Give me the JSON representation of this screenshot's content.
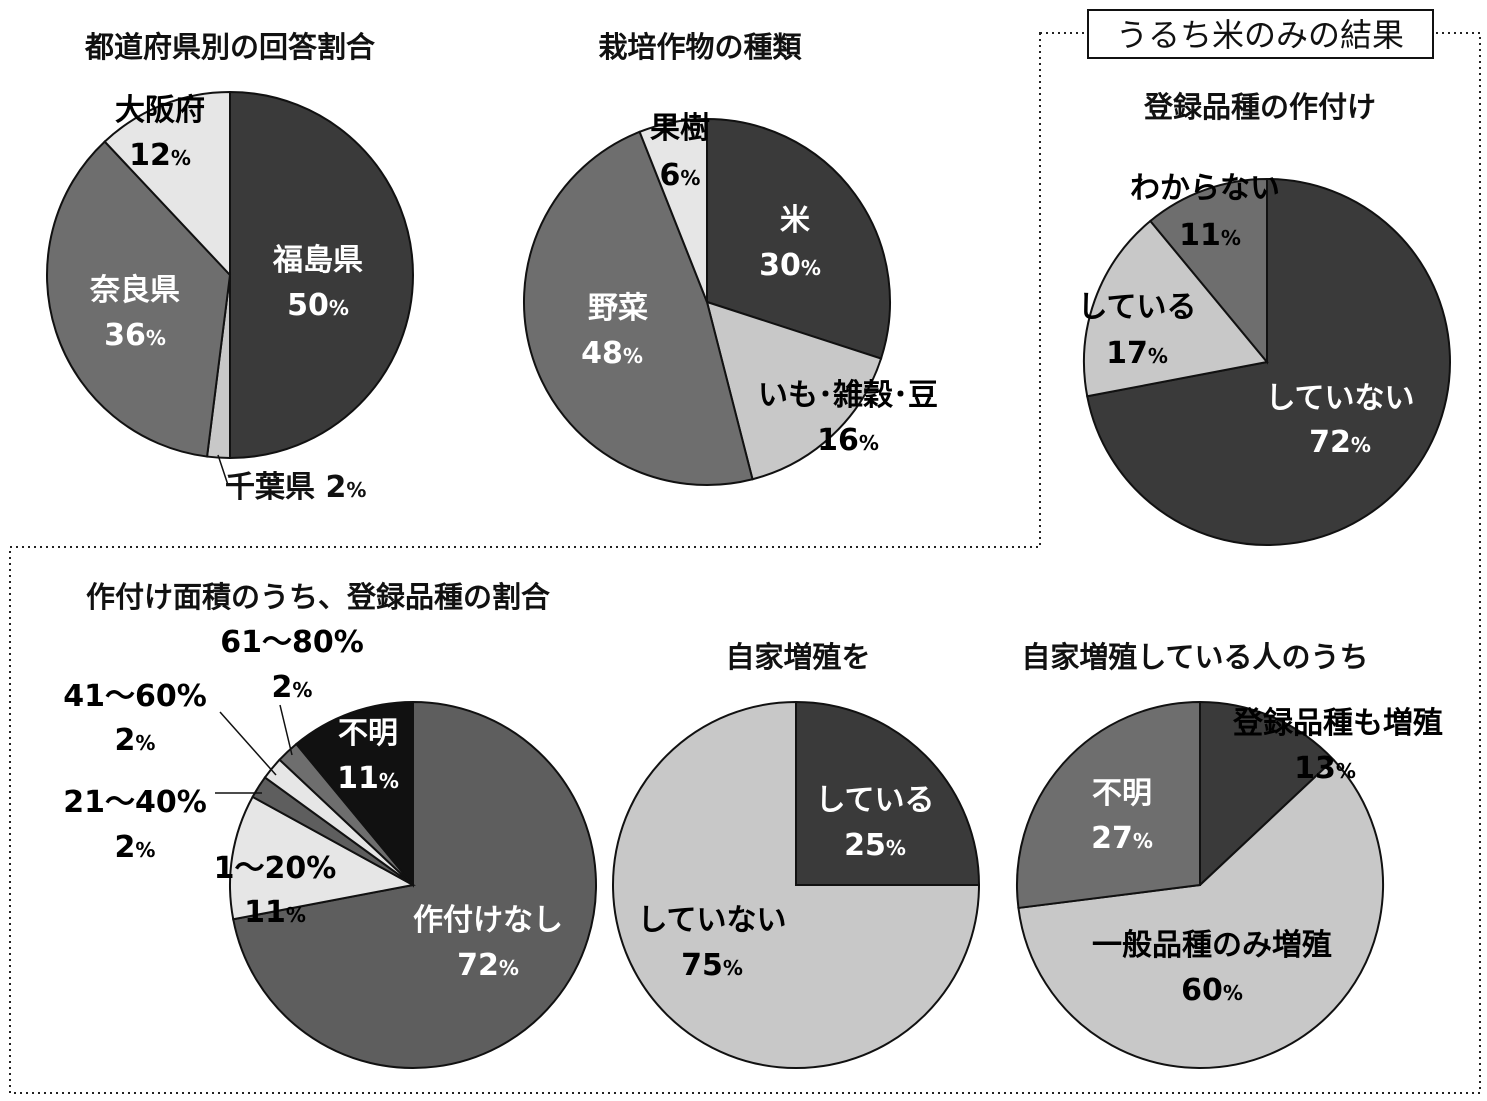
{
  "section_label": "うるち米のみの結果",
  "colors": {
    "dark": "#3a3a3a",
    "mid": "#6e6e6e",
    "light": "#c8c8c8",
    "pale": "#e6e6e6",
    "black": "#111111",
    "mid2": "#5e5e5e",
    "outline": "#111111"
  },
  "chart_data": [
    {
      "id": "prefecture",
      "type": "pie",
      "title": "都道府県別の回答割合",
      "slices": [
        {
          "label": "福島県",
          "value": 50,
          "value_text": "50%"
        },
        {
          "label": "千葉県",
          "value": 2,
          "value_text": "2%"
        },
        {
          "label": "奈良県",
          "value": 36,
          "value_text": "36%"
        },
        {
          "label": "大阪府",
          "value": 12,
          "value_text": "12%"
        }
      ]
    },
    {
      "id": "crops",
      "type": "pie",
      "title": "栽培作物の種類",
      "slices": [
        {
          "label": "米",
          "value": 30,
          "value_text": "30%"
        },
        {
          "label": "いも･雑穀･豆",
          "value": 16,
          "value_text": "16%"
        },
        {
          "label": "野菜",
          "value": 48,
          "value_text": "48%"
        },
        {
          "label": "果樹",
          "value": 6,
          "value_text": "6%"
        }
      ]
    },
    {
      "id": "registered_planting",
      "type": "pie",
      "title": "登録品種の作付け",
      "slices": [
        {
          "label": "していない",
          "value": 72,
          "value_text": "72%"
        },
        {
          "label": "している",
          "value": 17,
          "value_text": "17%"
        },
        {
          "label": "わからない",
          "value": 11,
          "value_text": "11%"
        }
      ]
    },
    {
      "id": "area_ratio",
      "type": "pie",
      "title": "作付け面積のうち、登録品種の割合",
      "slices": [
        {
          "label": "作付けなし",
          "value": 72,
          "value_text": "72%"
        },
        {
          "label": "1～20%",
          "value": 11,
          "value_text": "11%"
        },
        {
          "label": "21～40%",
          "value": 2,
          "value_text": "2%"
        },
        {
          "label": "41～60%",
          "value": 2,
          "value_text": "2%"
        },
        {
          "label": "61～80%",
          "value": 2,
          "value_text": "2%"
        },
        {
          "label": "不明",
          "value": 11,
          "value_text": "11%"
        }
      ]
    },
    {
      "id": "self_propagation",
      "type": "pie",
      "title": "自家増殖を",
      "slices": [
        {
          "label": "している",
          "value": 25,
          "value_text": "25%"
        },
        {
          "label": "していない",
          "value": 75,
          "value_text": "75%"
        }
      ]
    },
    {
      "id": "among_propagators",
      "type": "pie",
      "title": "自家増殖している人のうち",
      "slices": [
        {
          "label": "登録品種も増殖",
          "value": 13,
          "value_text": "13%"
        },
        {
          "label": "一般品種のみ増殖",
          "value": 60,
          "value_text": "60%"
        },
        {
          "label": "不明",
          "value": 27,
          "value_text": "27%"
        }
      ]
    }
  ]
}
